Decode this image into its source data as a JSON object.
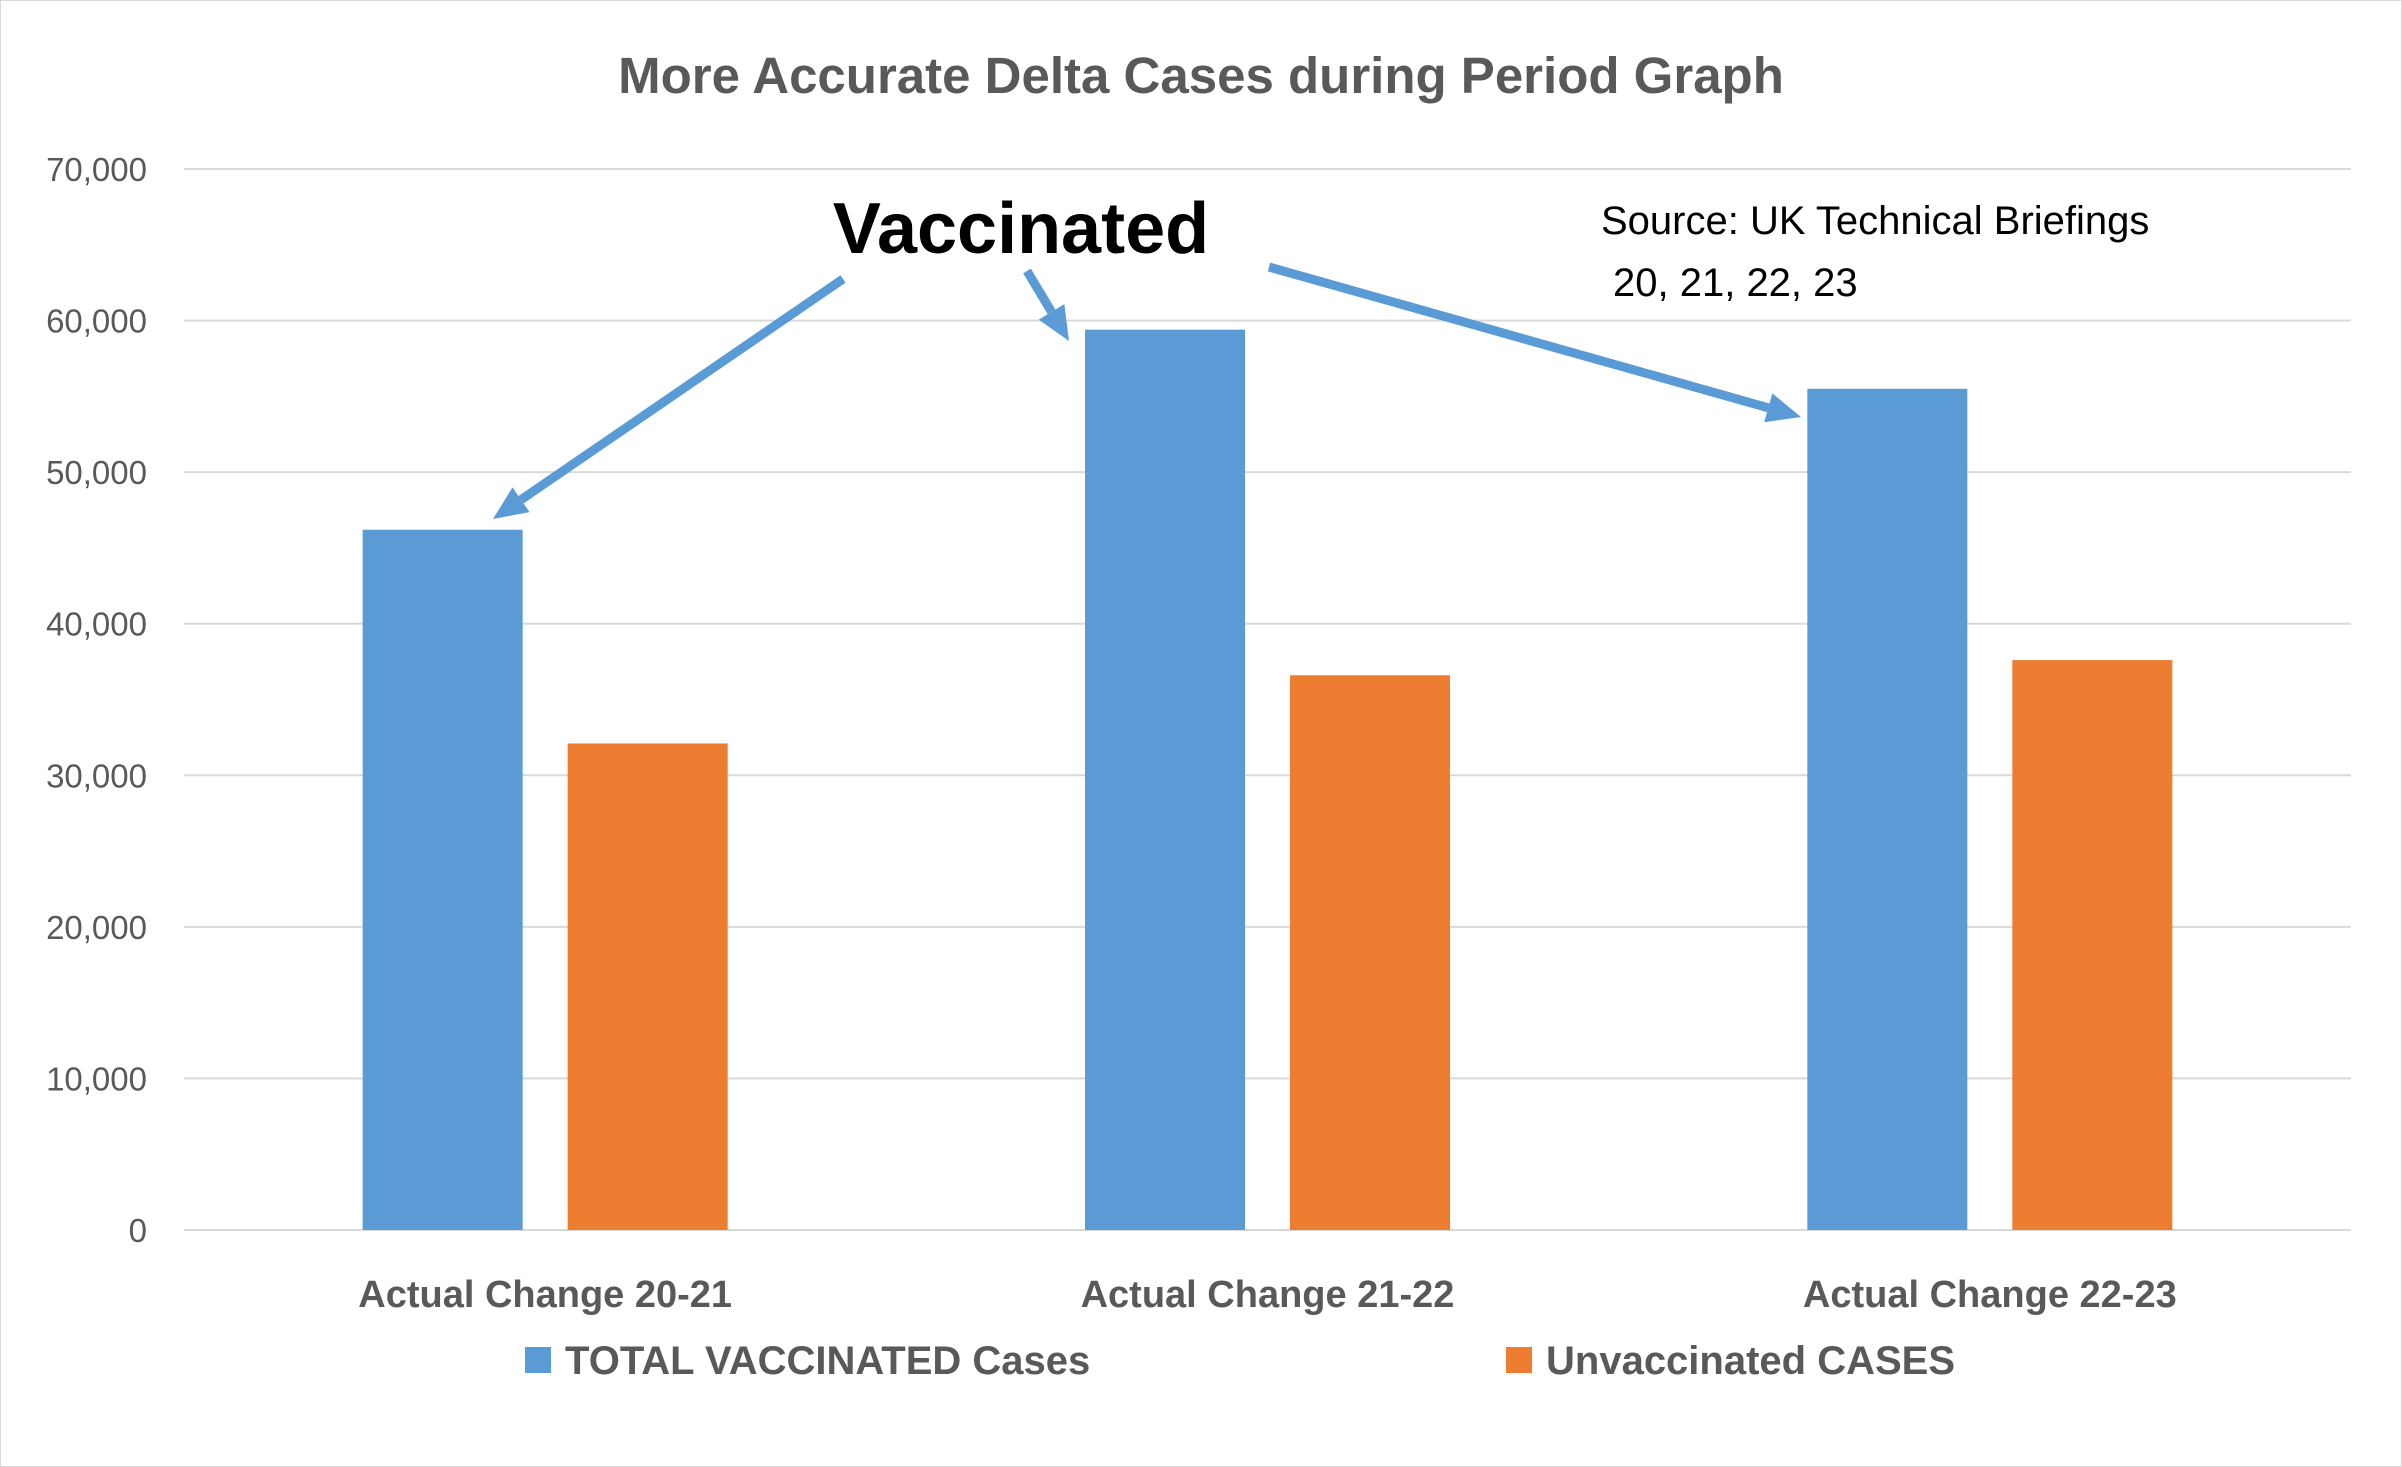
{
  "chart_data": {
    "type": "bar",
    "title": "More Accurate Delta Cases during Period Graph",
    "categories": [
      "Actual Change 20-21",
      "Actual Change 21-22",
      "Actual Change 22-23"
    ],
    "series": [
      {
        "name": "TOTAL VACCINATED Cases",
        "values": [
          46200,
          59400,
          55500
        ],
        "color": "#5b9bd5"
      },
      {
        "name": "Unvaccinated CASES",
        "values": [
          32100,
          36600,
          37600
        ],
        "color": "#ed7d31"
      }
    ],
    "yticks": [
      "0",
      "10,000",
      "20,000",
      "30,000",
      "40,000",
      "50,000",
      "60,000",
      "70,000"
    ],
    "ylim": [
      0,
      70000
    ],
    "xlabel": "",
    "ylabel": "",
    "grid": true,
    "legend_position": "bottom",
    "annotations": {
      "vaccinated_label": "Vaccinated",
      "source_line1": "Source: UK Technical Briefings",
      "source_line2": "20, 21, 22, 23"
    },
    "colors": {
      "gridline": "#d9d9d9",
      "axis_text": "#595959",
      "arrow": "#5b9bd5"
    }
  }
}
